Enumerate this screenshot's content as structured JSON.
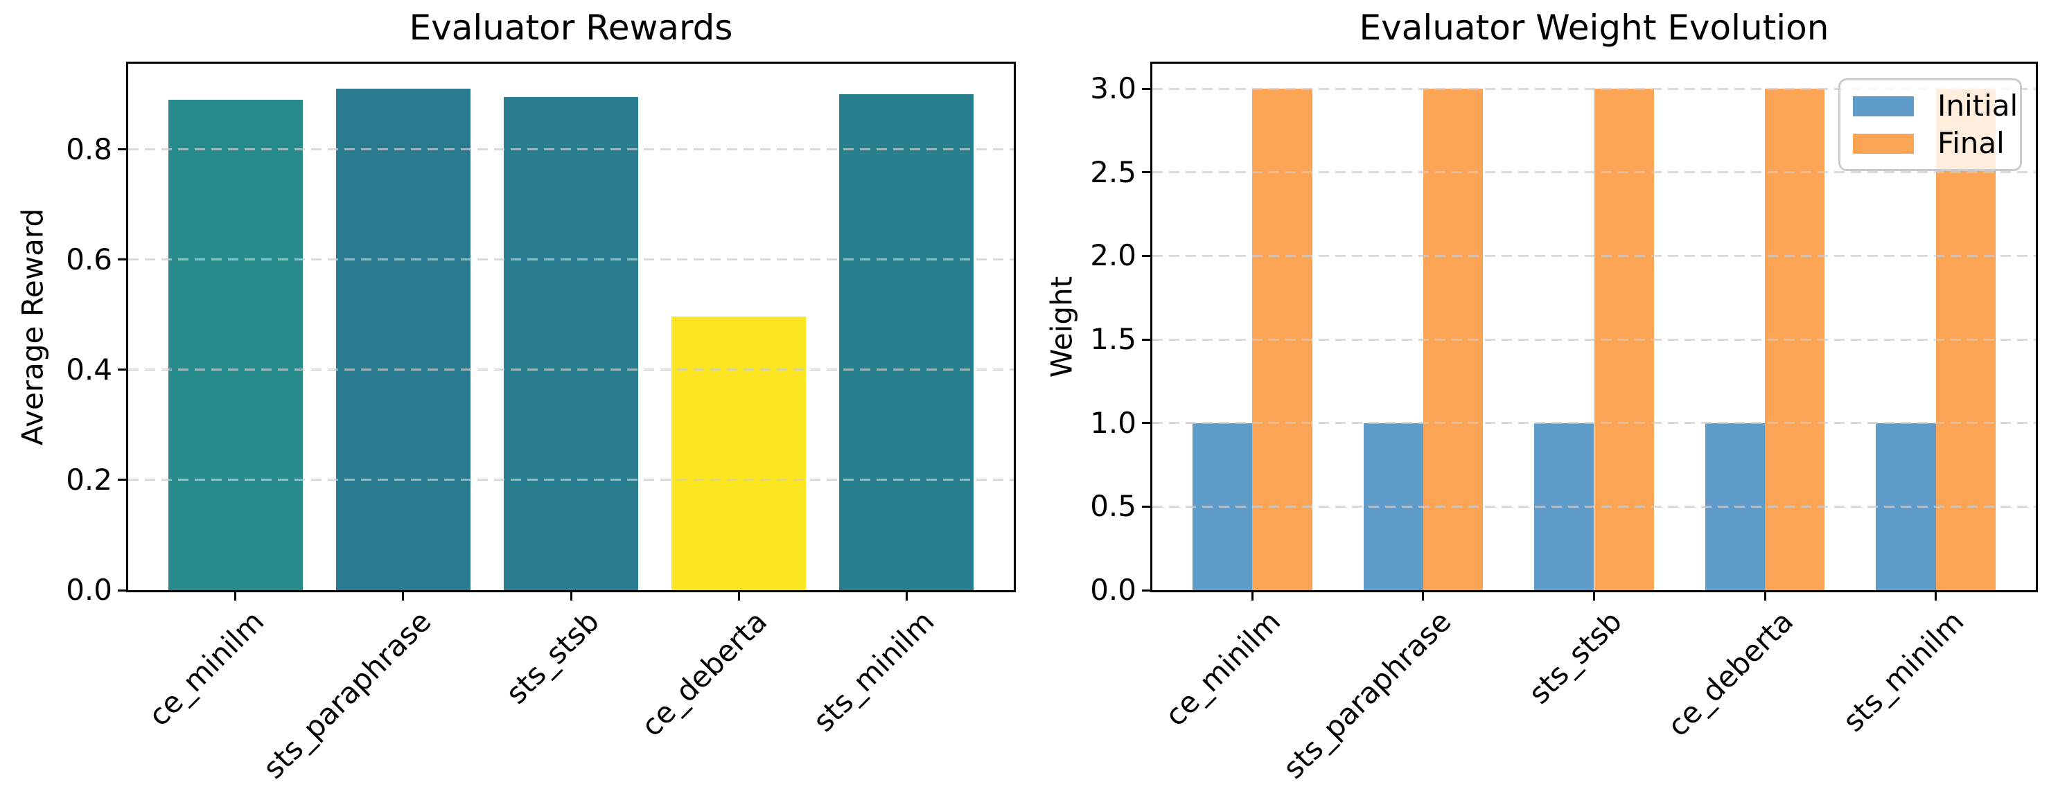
{
  "figure": {
    "background": "#ffffff"
  },
  "chart_data": [
    {
      "type": "bar",
      "title": "Evaluator Rewards",
      "ylabel": "Average Reward",
      "xlabel": "",
      "categories": [
        "ce_minilm",
        "sts_paraphrase",
        "sts_stsb",
        "ce_deberta",
        "sts_minilm"
      ],
      "values": [
        0.89,
        0.91,
        0.895,
        0.497,
        0.9
      ],
      "bar_colors": [
        "#268b8a",
        "#29798f",
        "#287e8e",
        "#fce521",
        "#28808e"
      ],
      "bar_width_frac": 0.8,
      "yticks": [
        0,
        0.2,
        0.4,
        0.6,
        0.8
      ],
      "ytick_labels": [
        "0.0",
        "0.2",
        "0.4",
        "0.6",
        "0.8"
      ],
      "ylim": [
        0,
        0.9555
      ],
      "xtick_rotation_deg": 45,
      "grid": {
        "axis": "y",
        "style": "dashed",
        "color": "#cccccc"
      }
    },
    {
      "type": "bar",
      "title": "Evaluator Weight Evolution",
      "ylabel": "Weight",
      "xlabel": "",
      "categories": [
        "ce_minilm",
        "sts_paraphrase",
        "sts_stsb",
        "ce_deberta",
        "sts_minilm"
      ],
      "series": [
        {
          "name": "Initial",
          "color": "#5f9cca",
          "values": [
            1,
            1,
            1,
            1,
            1
          ]
        },
        {
          "name": "Final",
          "color": "#fca455",
          "values": [
            3,
            3,
            3,
            3,
            3
          ]
        }
      ],
      "bar_width_frac": 0.35,
      "yticks": [
        0,
        0.5,
        1,
        1.5,
        2,
        2.5,
        3
      ],
      "ytick_labels": [
        "0.0",
        "0.5",
        "1.0",
        "1.5",
        "2.0",
        "2.5",
        "3.0"
      ],
      "ylim": [
        0,
        3.15
      ],
      "xtick_rotation_deg": 45,
      "grid": {
        "axis": "y",
        "style": "dashed",
        "color": "#cccccc"
      },
      "legend": {
        "position": "upper-right",
        "items": [
          "Initial",
          "Final"
        ]
      }
    }
  ]
}
